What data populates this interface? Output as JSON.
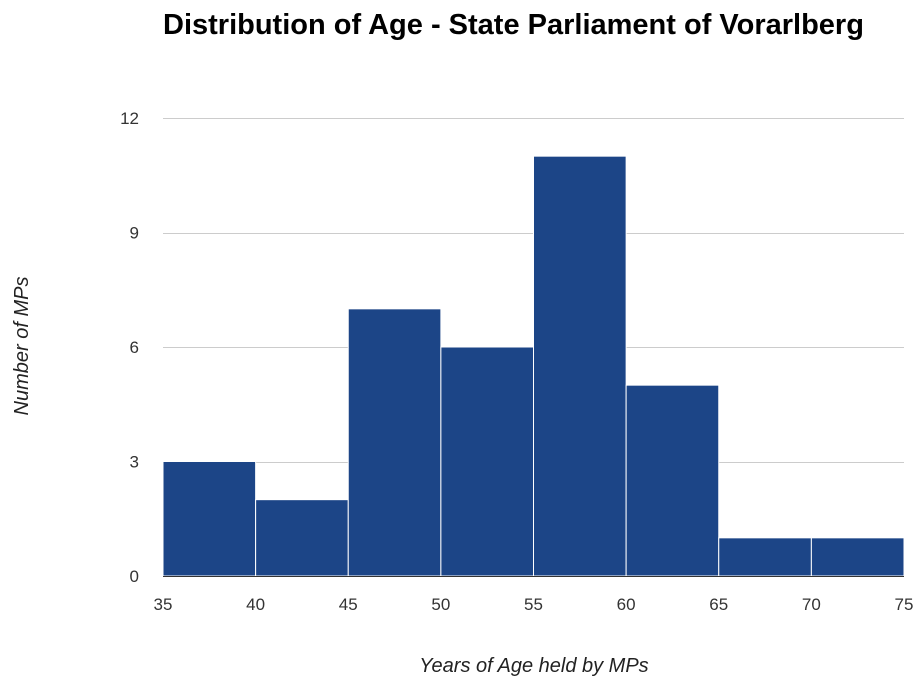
{
  "chart_data": {
    "type": "bar",
    "title": "Distribution of Age - State Parliament of Vorarlberg",
    "xlabel": "Years of Age held by MPs",
    "ylabel": "Number of MPs",
    "bins": [
      {
        "start": 35,
        "end": 40,
        "value": 3
      },
      {
        "start": 40,
        "end": 45,
        "value": 2
      },
      {
        "start": 45,
        "end": 50,
        "value": 7
      },
      {
        "start": 50,
        "end": 55,
        "value": 6
      },
      {
        "start": 55,
        "end": 60,
        "value": 11
      },
      {
        "start": 60,
        "end": 65,
        "value": 5
      },
      {
        "start": 65,
        "end": 70,
        "value": 1
      },
      {
        "start": 70,
        "end": 75,
        "value": 1
      }
    ],
    "xticks": [
      35,
      40,
      45,
      50,
      55,
      60,
      65,
      70,
      75
    ],
    "yticks": [
      0,
      3,
      6,
      9,
      12
    ],
    "xlim": [
      35,
      75
    ],
    "ylim": [
      0,
      12
    ],
    "grid": true,
    "bar_color": "#1c4587",
    "grid_color": "#cccccc"
  }
}
